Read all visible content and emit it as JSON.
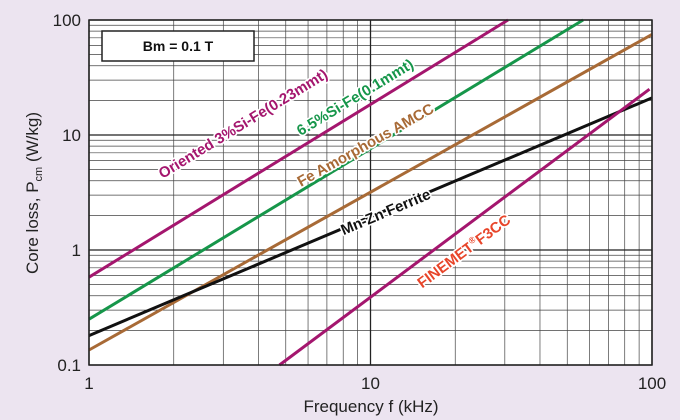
{
  "chart_data": {
    "type": "line",
    "xscale": "log",
    "yscale": "log",
    "xlim": [
      1,
      100
    ],
    "ylim": [
      0.1,
      100
    ],
    "xlabel": "Frequency f (kHz)",
    "ylabel_main": "Core loss, P",
    "ylabel_sub": "cm",
    "ylabel_unit": " (W/kg)",
    "xticks": [
      {
        "value": 1,
        "label": "1"
      },
      {
        "value": 10,
        "label": "10"
      },
      {
        "value": 100,
        "label": "100"
      }
    ],
    "yticks": [
      {
        "value": 0.1,
        "label": "0.1"
      },
      {
        "value": 1,
        "label": "1"
      },
      {
        "value": 10,
        "label": "10"
      },
      {
        "value": 100,
        "label": "100"
      }
    ],
    "grid": true,
    "annotation": "Bm = 0.1 T",
    "series": [
      {
        "name": "Oriented 3%Si-Fe(0.23mmt)",
        "label_main": "Oriented 3%Si-Fe(0.23mmt)",
        "label_sup": "",
        "label_tail": "",
        "color": "#a4166e",
        "x": [
          1,
          30.8
        ],
        "y": [
          0.58,
          100
        ],
        "label_at": [
          3.6,
          11.5
        ]
      },
      {
        "name": "6.5%Si-Fe(0.1mmt)",
        "label_main": "6.5%Si-Fe(0.1mmt)",
        "label_sup": "",
        "label_tail": "",
        "color": "#16964a",
        "x": [
          1,
          56.9
        ],
        "y": [
          0.25,
          100
        ],
        "label_at": [
          9.0,
          19.5
        ]
      },
      {
        "name": "Fe Amorphous AMCC",
        "label_main": "Fe Amorphous AMCC",
        "label_sup": "",
        "label_tail": "",
        "color": "#a86a36",
        "x": [
          1,
          100
        ],
        "y": [
          0.135,
          75
        ],
        "label_at": [
          9.8,
          7.5
        ]
      },
      {
        "name": "Mn-Zn Ferrite",
        "label_main": "Mn-Zn Ferrite",
        "label_sup": "",
        "label_tail": "",
        "color": "#111111",
        "x": [
          1,
          100
        ],
        "y": [
          0.18,
          21
        ],
        "label_at": [
          11.5,
          1.95
        ]
      },
      {
        "name": "FINEMET F3CC",
        "label_main": "FINEMET",
        "label_sup": "®",
        "label_tail": "F3CC",
        "color": "#a4166e",
        "label_color": "#e8452a",
        "x": [
          4.75,
          98
        ],
        "y": [
          0.1,
          25
        ],
        "label_at": [
          22.0,
          0.9
        ]
      }
    ]
  }
}
